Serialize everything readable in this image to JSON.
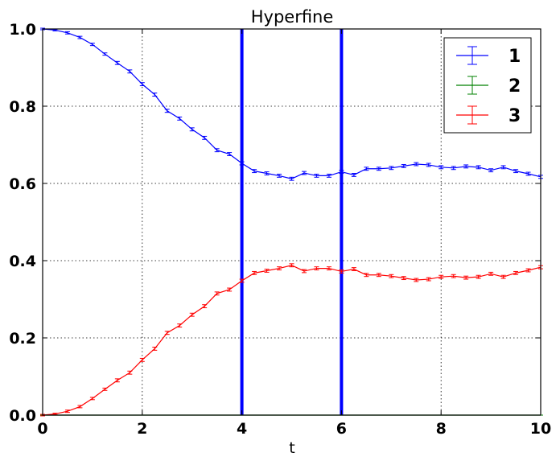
{
  "chart_data": {
    "type": "line",
    "title": "Hyperfine",
    "xlabel": "t",
    "ylabel": "",
    "xlim": [
      0,
      10
    ],
    "ylim": [
      0.0,
      1.0
    ],
    "xticks": [
      0,
      2,
      4,
      6,
      8,
      10
    ],
    "xtick_labels": [
      "0",
      "2",
      "4",
      "6",
      "8",
      "10"
    ],
    "yticks": [
      0.0,
      0.2,
      0.4,
      0.6,
      0.8,
      1.0
    ],
    "ytick_labels": [
      "0.0",
      "0.2",
      "0.4",
      "0.6",
      "0.8",
      "1.0"
    ],
    "grid": true,
    "legend_position": "top-right",
    "vertical_lines": [
      {
        "x": 4,
        "color": "#0000ff"
      },
      {
        "x": 6,
        "color": "#0000ff"
      }
    ],
    "x": [
      0,
      0.25,
      0.5,
      0.75,
      1.0,
      1.25,
      1.5,
      1.75,
      2.0,
      2.25,
      2.5,
      2.75,
      3.0,
      3.25,
      3.5,
      3.75,
      4.0,
      4.25,
      4.5,
      4.75,
      5.0,
      5.25,
      5.5,
      5.75,
      6.0,
      6.25,
      6.5,
      6.75,
      7.0,
      7.25,
      7.5,
      7.75,
      8.0,
      8.25,
      8.5,
      8.75,
      9.0,
      9.25,
      9.5,
      9.75,
      10.0
    ],
    "series": [
      {
        "name": "1",
        "color": "#0000ff",
        "values": [
          1.0,
          0.997,
          0.99,
          0.978,
          0.96,
          0.935,
          0.912,
          0.89,
          0.857,
          0.83,
          0.788,
          0.768,
          0.74,
          0.718,
          0.686,
          0.676,
          0.652,
          0.632,
          0.626,
          0.62,
          0.612,
          0.627,
          0.62,
          0.62,
          0.63,
          0.622,
          0.638,
          0.638,
          0.64,
          0.645,
          0.65,
          0.648,
          0.642,
          0.64,
          0.644,
          0.642,
          0.634,
          0.642,
          0.632,
          0.625,
          0.617
        ],
        "errors": [
          0.002,
          0.002,
          0.003,
          0.003,
          0.003,
          0.003,
          0.004,
          0.004,
          0.004,
          0.004,
          0.004,
          0.004,
          0.004,
          0.004,
          0.004,
          0.004,
          0.004,
          0.004,
          0.004,
          0.004,
          0.004,
          0.004,
          0.004,
          0.004,
          0.004,
          0.004,
          0.004,
          0.004,
          0.004,
          0.004,
          0.004,
          0.004,
          0.004,
          0.004,
          0.004,
          0.004,
          0.004,
          0.004,
          0.004,
          0.004,
          0.004
        ]
      },
      {
        "name": "2",
        "color": "#008000",
        "values": [
          0,
          0,
          0,
          0,
          0,
          0,
          0,
          0,
          0,
          0,
          0,
          0,
          0,
          0,
          0,
          0,
          0,
          0,
          0,
          0,
          0,
          0,
          0,
          0,
          0,
          0,
          0,
          0,
          0,
          0,
          0,
          0,
          0,
          0,
          0,
          0,
          0,
          0,
          0,
          0,
          0
        ],
        "errors": [
          0,
          0,
          0,
          0,
          0,
          0,
          0,
          0,
          0,
          0,
          0,
          0,
          0,
          0,
          0,
          0,
          0,
          0,
          0,
          0,
          0,
          0,
          0,
          0,
          0,
          0,
          0,
          0,
          0,
          0,
          0,
          0,
          0,
          0,
          0,
          0,
          0,
          0,
          0,
          0,
          0
        ]
      },
      {
        "name": "3",
        "color": "#ff0000",
        "values": [
          0.0,
          0.003,
          0.01,
          0.022,
          0.043,
          0.067,
          0.09,
          0.11,
          0.143,
          0.172,
          0.213,
          0.232,
          0.26,
          0.282,
          0.315,
          0.325,
          0.348,
          0.368,
          0.374,
          0.38,
          0.388,
          0.373,
          0.38,
          0.38,
          0.372,
          0.378,
          0.363,
          0.363,
          0.36,
          0.355,
          0.35,
          0.352,
          0.358,
          0.36,
          0.356,
          0.358,
          0.366,
          0.358,
          0.368,
          0.375,
          0.383
        ],
        "errors": [
          0.002,
          0.002,
          0.003,
          0.003,
          0.003,
          0.003,
          0.004,
          0.004,
          0.004,
          0.004,
          0.004,
          0.004,
          0.004,
          0.004,
          0.004,
          0.004,
          0.004,
          0.004,
          0.004,
          0.004,
          0.004,
          0.004,
          0.004,
          0.004,
          0.004,
          0.004,
          0.004,
          0.004,
          0.004,
          0.004,
          0.004,
          0.004,
          0.004,
          0.004,
          0.004,
          0.004,
          0.004,
          0.004,
          0.004,
          0.004,
          0.004
        ]
      }
    ]
  }
}
